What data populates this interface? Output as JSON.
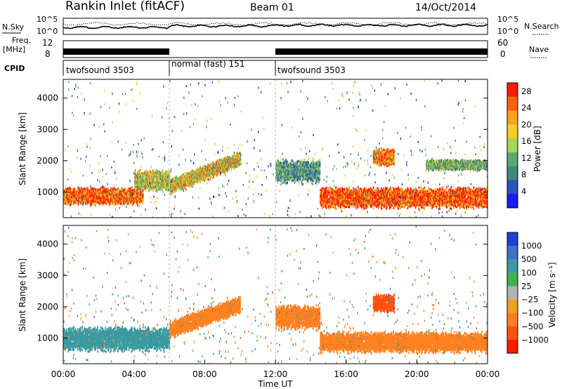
{
  "header": {
    "station": "Rankin Inlet (fitACF)",
    "beam": "Beam 01",
    "date": "14/Oct/2014"
  },
  "summary_panel": {
    "nsky_label": "N.Sky",
    "nsky_ticks": [
      "10^5",
      "10^0"
    ],
    "nsearch_label": "N.Search",
    "nsearch_ticks": [
      "10^5",
      "10^0"
    ],
    "freq_label": "Freq.",
    "freq_unit": "[MHz]",
    "freq_ticks": [
      "12",
      "8"
    ],
    "nave_label": "Nave",
    "nave_ticks": [
      "60",
      "0"
    ],
    "cpid_label": "CPID",
    "cpid_segments": [
      {
        "name": "twofsound 3503",
        "start": 0,
        "end": 6
      },
      {
        "name": "normal (fast) 151",
        "start": 6,
        "end": 12
      },
      {
        "name": "twofsound 3503",
        "start": 12,
        "end": 24
      }
    ]
  },
  "colors": {
    "power": [
      "#1a1aff",
      "#2a55b8",
      "#3d8a7a",
      "#5aa96e",
      "#a8d45a",
      "#f0d020",
      "#ffa020",
      "#ff6010",
      "#ff1a00"
    ],
    "velocity": [
      "#2040d0",
      "#4070c8",
      "#3a9aa0",
      "#40b050",
      "#b4b4b4",
      "#f0a020",
      "#ff8020",
      "#ff5010",
      "#ff1a00"
    ]
  },
  "chart_data": [
    {
      "type": "heatmap",
      "name": "power",
      "xlabel": "",
      "ylabel": "Slant Range [km]",
      "xlim": [
        0,
        24
      ],
      "ylim": [
        180,
        4600
      ],
      "yticks": [
        "1000",
        "2000",
        "3000",
        "4000"
      ],
      "colorbar": {
        "label": "Power [dB]",
        "ticks": [
          "4",
          "8",
          "12",
          "16",
          "20",
          "24",
          "28"
        ],
        "range": [
          0,
          30
        ]
      },
      "echo_regions": [
        {
          "t_start": 0.0,
          "t_end": 4.5,
          "range_center": 900,
          "range_halfwidth": 250,
          "value": 26
        },
        {
          "t_start": 4.0,
          "t_end": 6.0,
          "range_center": 1400,
          "range_halfwidth": 300,
          "value": 16
        },
        {
          "t_start": 6.0,
          "t_end": 10.0,
          "range_center_start": 1200,
          "range_center_end": 2100,
          "range_halfwidth": 220,
          "value": 18
        },
        {
          "t_start": 12.0,
          "t_end": 14.5,
          "range_center": 1700,
          "range_halfwidth": 350,
          "value": 10
        },
        {
          "t_start": 14.5,
          "t_end": 24.0,
          "range_center": 850,
          "range_halfwidth": 300,
          "value": 28
        },
        {
          "t_start": 17.5,
          "t_end": 18.7,
          "range_center": 2150,
          "range_halfwidth": 250,
          "value": 24
        },
        {
          "t_start": 20.5,
          "t_end": 24.0,
          "range_center": 1900,
          "range_halfwidth": 150,
          "value": 12
        }
      ]
    },
    {
      "type": "heatmap",
      "name": "velocity",
      "xlabel": "Time UT",
      "ylabel": "Slant Range [km]",
      "xlim": [
        0,
        24
      ],
      "ylim": [
        180,
        4600
      ],
      "xticks": [
        "00:00",
        "04:00",
        "08:00",
        "12:00",
        "16:00",
        "20:00",
        "00:00"
      ],
      "yticks": [
        "1000",
        "2000",
        "3000",
        "4000"
      ],
      "colorbar": {
        "label": "Velocity [m s⁻¹]",
        "ticks": [
          "1000",
          "500",
          "100",
          "25",
          "−25",
          "−100",
          "−500",
          "−1000"
        ]
      },
      "echo_regions": [
        {
          "t_start": 0.0,
          "t_end": 6.0,
          "range_center": 1000,
          "range_halfwidth": 350,
          "value": 150
        },
        {
          "t_start": 6.0,
          "t_end": 10.0,
          "range_center_start": 1300,
          "range_center_end": 2100,
          "range_halfwidth": 250,
          "value": -300
        },
        {
          "t_start": 12.0,
          "t_end": 14.5,
          "range_center": 1700,
          "range_halfwidth": 350,
          "value": -300
        },
        {
          "t_start": 14.5,
          "t_end": 24.0,
          "range_center": 900,
          "range_halfwidth": 300,
          "value": -200
        },
        {
          "t_start": 17.5,
          "t_end": 18.7,
          "range_center": 2150,
          "range_halfwidth": 250,
          "value": -700
        }
      ]
    }
  ]
}
